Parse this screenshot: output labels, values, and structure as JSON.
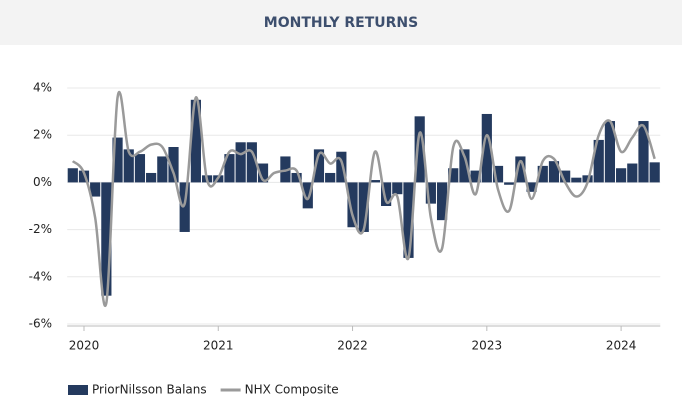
{
  "chart_data": {
    "type": "bar-line",
    "title": "MONTHLY RETURNS",
    "categories": [
      null,
      "2020",
      null,
      null,
      null,
      null,
      null,
      null,
      null,
      null,
      null,
      null,
      null,
      "2021",
      null,
      null,
      null,
      null,
      null,
      null,
      null,
      null,
      null,
      null,
      null,
      "2022",
      null,
      null,
      null,
      null,
      null,
      null,
      null,
      null,
      null,
      null,
      null,
      "2023",
      null,
      null,
      null,
      null,
      null,
      null,
      null,
      null,
      null,
      null,
      null,
      "2024",
      null,
      null,
      null
    ],
    "series": [
      {
        "name": "PriorNilsson Balans",
        "color": "#243a5e",
        "kind": "bar",
        "values": [
          0.6,
          0.5,
          -0.6,
          -4.8,
          1.9,
          1.4,
          1.2,
          0.4,
          1.1,
          1.5,
          -2.1,
          3.5,
          0.3,
          0.3,
          1.2,
          1.7,
          1.7,
          0.8,
          0,
          1.1,
          0.4,
          -1.1,
          1.4,
          0.4,
          1.3,
          -1.9,
          -2.1,
          0.1,
          -1.0,
          -0.5,
          -3.2,
          2.8,
          -0.9,
          -1.6,
          0.6,
          1.4,
          0.5,
          2.9,
          0.7,
          -0.1,
          1.1,
          -0.4,
          0.7,
          0.9,
          0.5,
          0.2,
          0.3,
          1.8,
          2.6,
          0.6,
          0.8,
          2.6,
          0.85
        ]
      },
      {
        "name": "NHX Composite",
        "color": "#9a9a9a",
        "kind": "line",
        "values": [
          0.9,
          0.4,
          -1.5,
          -5.1,
          3.6,
          1.3,
          1.3,
          1.6,
          1.5,
          0.4,
          -0.9,
          3.6,
          0.1,
          0.2,
          1.3,
          1.2,
          1.3,
          0.1,
          0.4,
          0.5,
          0.5,
          -0.7,
          1.2,
          0.8,
          0.9,
          -1.4,
          -2.0,
          1.3,
          -0.8,
          -0.6,
          -3.2,
          2.1,
          -1.5,
          -2.8,
          1.5,
          1.1,
          -0.5,
          2.0,
          -0.3,
          -1.2,
          0.9,
          -0.7,
          0.9,
          1.0,
          0.0,
          -0.6,
          0.0,
          2.0,
          2.6,
          1.3,
          1.9,
          2.4,
          1.0
        ]
      }
    ],
    "ylim": [
      -6,
      4.5
    ],
    "yticks": [
      {
        "value": -6,
        "label": "-6%"
      },
      {
        "value": -4,
        "label": "-4%"
      },
      {
        "value": -2,
        "label": "-2%"
      },
      {
        "value": 0,
        "label": "0%"
      },
      {
        "value": 2,
        "label": "2%"
      },
      {
        "value": 4,
        "label": "4%"
      }
    ],
    "grid": true,
    "legend": "bottom-left"
  }
}
